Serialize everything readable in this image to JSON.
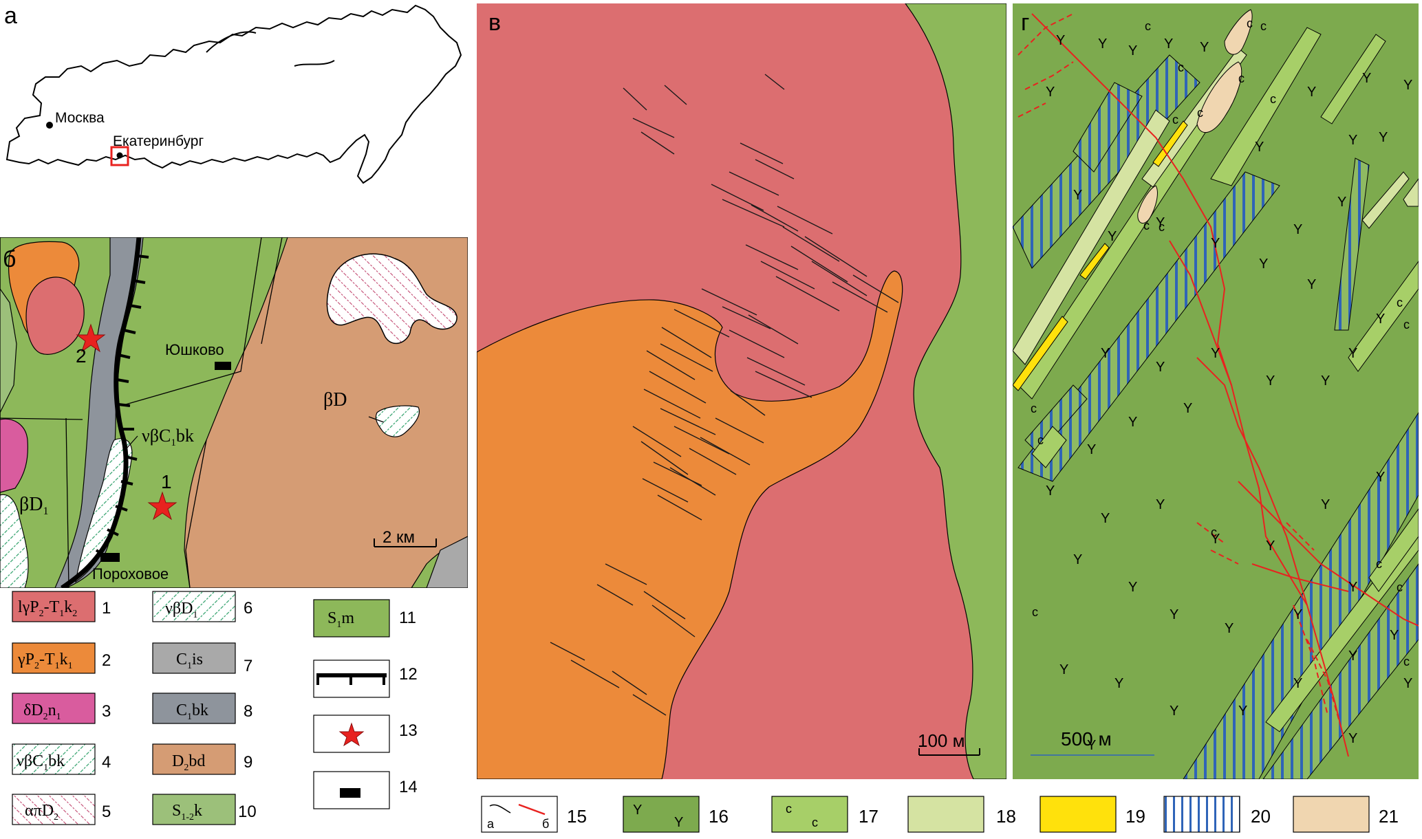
{
  "panels": {
    "a": "а",
    "b": "б",
    "v": "в",
    "g": "г"
  },
  "panel_a": {
    "city1": "Москва",
    "city2": "Екатеринбург"
  },
  "panel_b": {
    "site1": "1",
    "site2": "2",
    "village1": "Юшково",
    "village2": "Пороховое",
    "unit_bD": "βD",
    "unit_bD1": "βD",
    "unit_bD1_sub": "1",
    "unit_nbC1bk": "νβC",
    "unit_nbC1bk_sub": "1",
    "unit_nbC1bk_tail": "bk",
    "scale": "2 км"
  },
  "panel_v": {
    "scale": "100 м"
  },
  "panel_g": {
    "scale": "500 м",
    "sym_y": "Y",
    "sym_c": "c"
  },
  "legend": {
    "items": [
      {
        "num": "1",
        "text": "lγP₂-T₁k₂",
        "color": "#dc6e70"
      },
      {
        "num": "2",
        "text": "γP₂-T₁k₁",
        "color": "#ec8a3a"
      },
      {
        "num": "3",
        "text": "δD₂n₁",
        "color": "#d95c9e"
      },
      {
        "num": "4",
        "text": "νβC₁bk",
        "color": "#ffffff"
      },
      {
        "num": "5",
        "text": "απD₂",
        "color": "#ffffff"
      },
      {
        "num": "6",
        "text": "νβD₁",
        "color": "#ffffff"
      },
      {
        "num": "7",
        "text": "C₁is",
        "color": "#a9a9a9"
      },
      {
        "num": "8",
        "text": "C₁bk",
        "color": "#8e949c"
      },
      {
        "num": "9",
        "text": "D₂bd",
        "color": "#d59c74"
      },
      {
        "num": "10",
        "text": "S₁₋₂k",
        "color": "#9cc07a"
      },
      {
        "num": "11",
        "text": "S₁m",
        "color": "#8db85a"
      },
      {
        "num": "12",
        "text": "",
        "color": "#ffffff"
      },
      {
        "num": "13",
        "text": "",
        "color": "#ffffff"
      },
      {
        "num": "14",
        "text": "",
        "color": "#ffffff"
      },
      {
        "num": "15",
        "text": "",
        "color": "#ffffff"
      },
      {
        "num": "16",
        "text": "",
        "color": "#7daa4e"
      },
      {
        "num": "17",
        "text": "",
        "color": "#a7cf68"
      },
      {
        "num": "18",
        "text": "",
        "color": "#d5e3a2"
      },
      {
        "num": "19",
        "text": "",
        "color": "#ffe10c"
      },
      {
        "num": "20",
        "text": "",
        "color": "#ffffff"
      },
      {
        "num": "21",
        "text": "",
        "color": "#f0d6b0"
      }
    ],
    "l15a": "а",
    "l15b": "б",
    "l16y": "Y"
  },
  "colors": {
    "green": "#8db85a",
    "lightgreen": "#9cc07a",
    "pink": "#dc6e70",
    "orange": "#ec8a3a",
    "magenta": "#d95c9e",
    "gray": "#8e949c",
    "lightgray": "#a9a9a9",
    "tan": "#d59c74",
    "g_green": "#7daa4e",
    "g_light": "#d5e3a2",
    "g_mid": "#a7cf68",
    "yellow": "#ffe10c",
    "blue": "#2f64b8",
    "beige": "#f0d6b0",
    "red": "#e8221f"
  }
}
